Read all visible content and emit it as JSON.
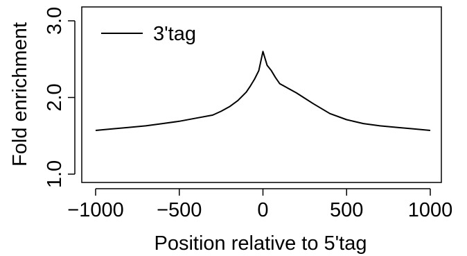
{
  "chart_data": {
    "type": "line",
    "title": "",
    "xlabel": "Position relative to 5'tag",
    "ylabel": "Fold enrichment",
    "xlim": [
      -1000,
      1000
    ],
    "ylim": [
      1.0,
      3.0
    ],
    "x_ticks": [
      -1000,
      -500,
      0,
      500,
      1000
    ],
    "x_tick_labels": [
      "−1000",
      "−500",
      "0",
      "500",
      "1000"
    ],
    "y_ticks": [
      1.0,
      2.0,
      3.0
    ],
    "y_tick_labels": [
      "1.0",
      "2.0",
      "3.0"
    ],
    "grid": false,
    "legend_position": "top-left",
    "series": [
      {
        "name": "3'tag",
        "color": "#000000",
        "x": [
          -1000,
          -900,
          -800,
          -700,
          -600,
          -500,
          -400,
          -300,
          -250,
          -200,
          -150,
          -100,
          -75,
          -50,
          -25,
          0,
          25,
          50,
          75,
          100,
          125,
          150,
          200,
          250,
          300,
          400,
          500,
          600,
          700,
          800,
          900,
          1000
        ],
        "y": [
          1.57,
          1.59,
          1.61,
          1.63,
          1.66,
          1.69,
          1.73,
          1.77,
          1.82,
          1.88,
          1.96,
          2.07,
          2.15,
          2.24,
          2.35,
          2.6,
          2.42,
          2.35,
          2.26,
          2.18,
          2.15,
          2.12,
          2.06,
          1.99,
          1.92,
          1.79,
          1.71,
          1.66,
          1.63,
          1.61,
          1.59,
          1.57
        ]
      }
    ]
  }
}
